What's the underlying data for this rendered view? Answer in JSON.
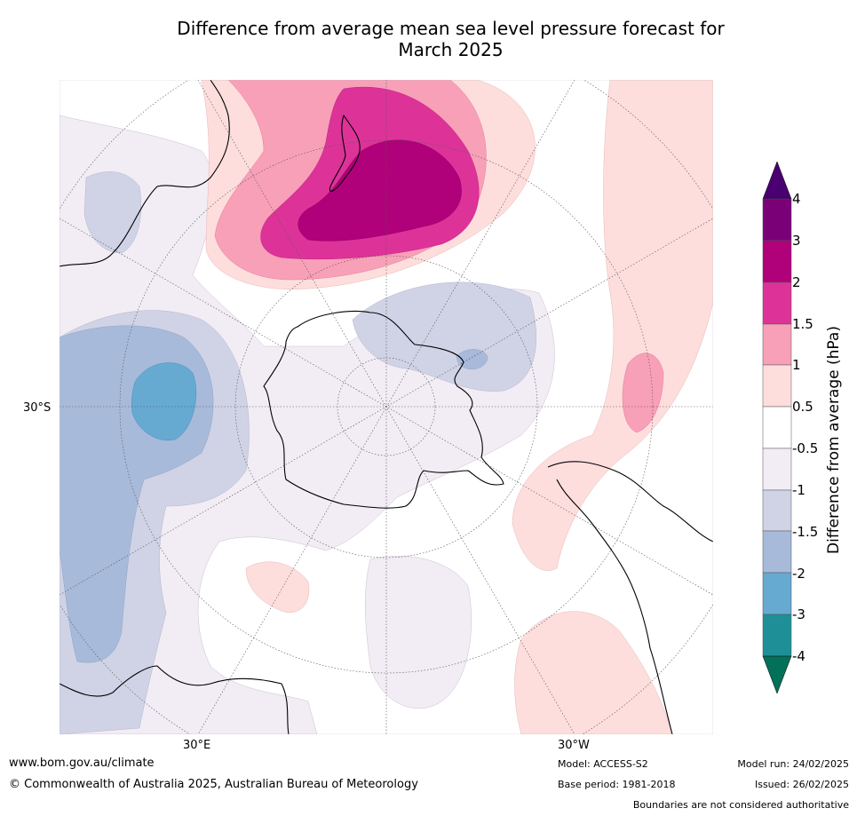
{
  "title": {
    "line1": "Difference from average mean sea level pressure forecast for",
    "line2": "March 2025"
  },
  "map": {
    "projection": "south-polar-stereographic",
    "graticule_labels": {
      "lat": "30°S",
      "lon_left": "30°E",
      "lon_right": "30°W"
    }
  },
  "colorbar": {
    "title": "Difference from average (hPa)",
    "ticks": [
      "4",
      "3",
      "2",
      "1.5",
      "1",
      "0.5",
      "-0.5",
      "-1",
      "-1.5",
      "-2",
      "-3",
      "-4"
    ],
    "colors": {
      "above_4": "#4a0070",
      "3_to_4": "#7a0078",
      "2_to_3": "#b0007a",
      "1.5_to_2": "#dd3399",
      "1_to_1.5": "#f8a0b8",
      "0.5_to_1": "#fddedd",
      "-0.5_to_0.5": "#ffffff",
      "-1_to_-0.5": "#f2ecf4",
      "-1.5_to_-1": "#d0d3e5",
      "-2_to_-1.5": "#a8bada",
      "-3_to_-2": "#66aad2",
      "-4_to_-3": "#1e8f97",
      "below_-4": "#03705a"
    }
  },
  "footer": {
    "website": "www.bom.gov.au/climate",
    "copyright": "© Commonwealth of Australia 2025, Australian Bureau of Meteorology",
    "model": "Model: ACCESS-S2",
    "base_period": "Base period: 1981-2018",
    "model_run": "Model run: 24/02/2025",
    "issued": "Issued: 26/02/2025",
    "disclaimer": "Boundaries are not considered authoritative"
  }
}
